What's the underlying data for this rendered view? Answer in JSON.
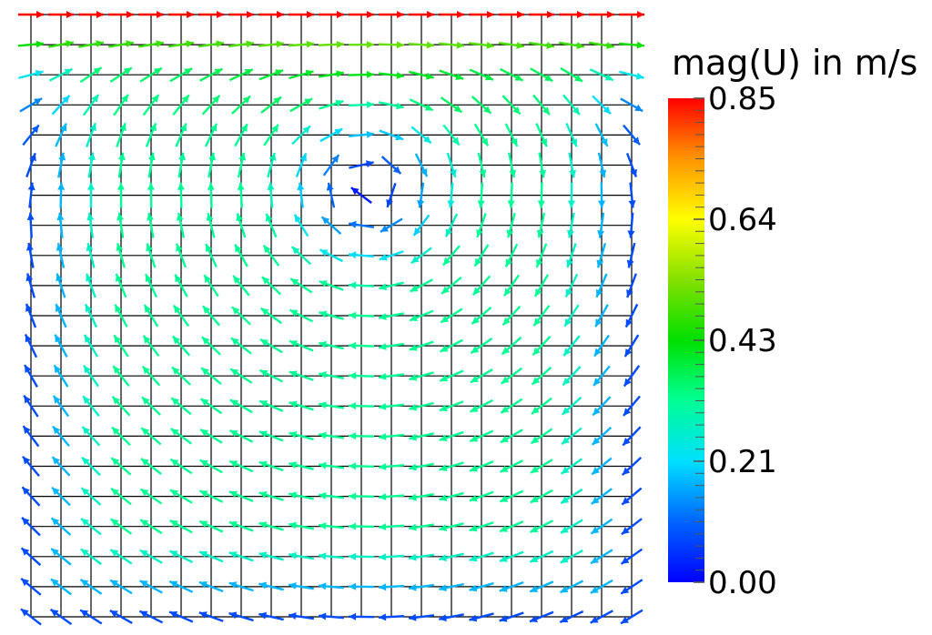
{
  "legend": {
    "title": "mag(U) in m/s",
    "ticks": [
      "0.85",
      "0.64",
      "0.43",
      "0.21",
      "0.00"
    ],
    "min": 0.0,
    "max": 0.85
  },
  "colormap": [
    "#0000ff",
    "#0080ff",
    "#00ffff",
    "#00ff80",
    "#00e000",
    "#80e000",
    "#ffff00",
    "#ff8000",
    "#ff0000"
  ],
  "mesh": {
    "cells_x": 20,
    "cells_y": 20,
    "line_color": "#000000"
  },
  "field": {
    "type": "lid-driven cavity velocity vectors",
    "lid_speed": 0.85
  }
}
